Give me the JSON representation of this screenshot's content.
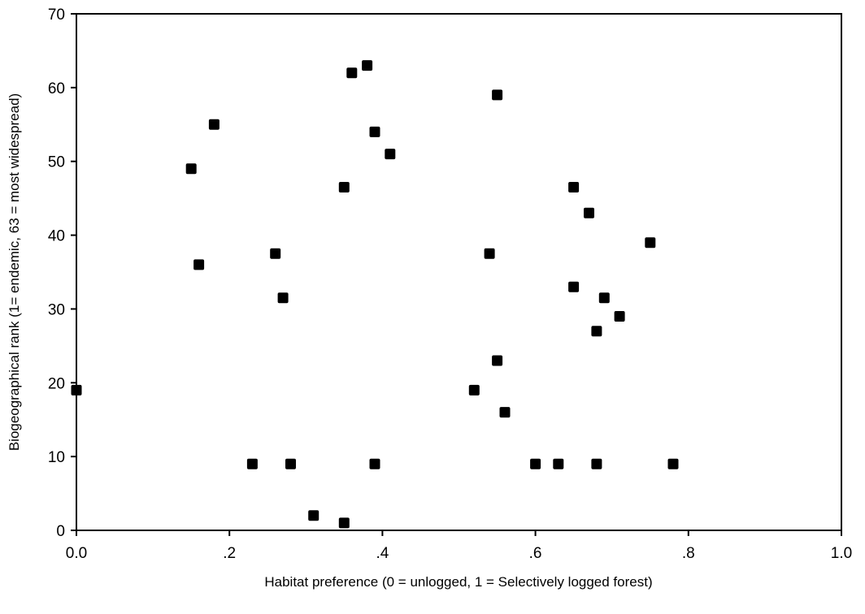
{
  "chart_data": {
    "type": "scatter",
    "title": "",
    "xlabel": "Habitat preference (0 = unlogged, 1 = Selectively logged forest)",
    "ylabel": "Biogeographical rank (1= endemic, 63 = most widespread)",
    "xlim": [
      0,
      1
    ],
    "ylim": [
      0,
      70
    ],
    "grid": false,
    "legend": "none",
    "marker_color": "#000000",
    "x_ticks": [
      0,
      0.2,
      0.4,
      0.6,
      0.8,
      1.0
    ],
    "x_tick_labels": [
      "0.0",
      ".2",
      ".4",
      ".6",
      ".8",
      "1.0"
    ],
    "y_ticks": [
      0,
      10,
      20,
      30,
      40,
      50,
      60,
      70
    ],
    "y_tick_labels": [
      "0",
      "10",
      "20",
      "30",
      "40",
      "50",
      "60",
      "70"
    ],
    "points": [
      {
        "x": 0.0,
        "y": 19
      },
      {
        "x": 0.15,
        "y": 49
      },
      {
        "x": 0.16,
        "y": 36
      },
      {
        "x": 0.18,
        "y": 55
      },
      {
        "x": 0.23,
        "y": 9
      },
      {
        "x": 0.26,
        "y": 37.5
      },
      {
        "x": 0.27,
        "y": 31.5
      },
      {
        "x": 0.28,
        "y": 9
      },
      {
        "x": 0.31,
        "y": 2
      },
      {
        "x": 0.35,
        "y": 46.5
      },
      {
        "x": 0.35,
        "y": 1
      },
      {
        "x": 0.36,
        "y": 62
      },
      {
        "x": 0.38,
        "y": 63
      },
      {
        "x": 0.39,
        "y": 54
      },
      {
        "x": 0.39,
        "y": 9
      },
      {
        "x": 0.41,
        "y": 51
      },
      {
        "x": 0.52,
        "y": 19
      },
      {
        "x": 0.54,
        "y": 37.5
      },
      {
        "x": 0.55,
        "y": 59
      },
      {
        "x": 0.55,
        "y": 23
      },
      {
        "x": 0.56,
        "y": 16
      },
      {
        "x": 0.6,
        "y": 9
      },
      {
        "x": 0.63,
        "y": 9
      },
      {
        "x": 0.65,
        "y": 46.5
      },
      {
        "x": 0.65,
        "y": 33
      },
      {
        "x": 0.67,
        "y": 43
      },
      {
        "x": 0.68,
        "y": 27
      },
      {
        "x": 0.68,
        "y": 9
      },
      {
        "x": 0.69,
        "y": 31.5
      },
      {
        "x": 0.71,
        "y": 29
      },
      {
        "x": 0.75,
        "y": 39
      },
      {
        "x": 0.78,
        "y": 9
      }
    ]
  }
}
